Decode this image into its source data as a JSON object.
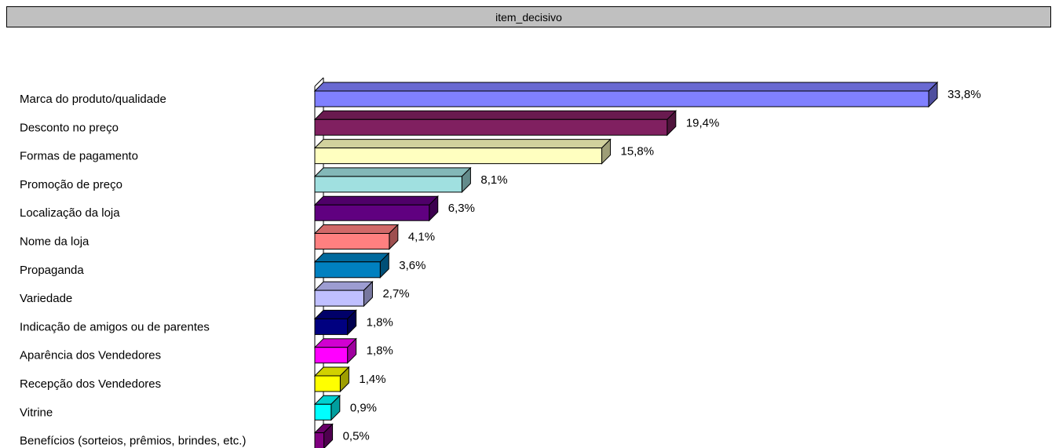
{
  "chart_data": {
    "type": "bar",
    "orientation": "horizontal",
    "title": "item_decisivo",
    "categories": [
      "Marca do produto/qualidade",
      "Desconto no preço",
      "Formas de pagamento",
      "Promoção de preço",
      "Localização da loja",
      "Nome da loja",
      "Propaganda",
      "Variedade",
      "Indicação de amigos ou de parentes",
      "Aparência dos Vendedores",
      "Recepção dos Vendedores",
      "Vitrine",
      "Benefícios (sorteios, prêmios, brindes, etc.)"
    ],
    "values": [
      33.8,
      19.4,
      15.8,
      8.1,
      6.3,
      4.1,
      3.6,
      2.7,
      1.8,
      1.8,
      1.4,
      0.9,
      0.5
    ],
    "value_labels": [
      "33,8%",
      "19,4%",
      "15,8%",
      "8,1%",
      "6,3%",
      "4,1%",
      "3,6%",
      "2,7%",
      "1,8%",
      "1,8%",
      "1,4%",
      "0,9%",
      "0,5%"
    ],
    "colors": [
      "#8080ff",
      "#802060",
      "#ffffc0",
      "#a0e0e0",
      "#600080",
      "#ff8080",
      "#0080c0",
      "#c0c0ff",
      "#000080",
      "#ff00ff",
      "#ffff00",
      "#00ffff",
      "#800080"
    ],
    "xlim": [
      0,
      33.8
    ],
    "grid": false,
    "legend": "none"
  }
}
